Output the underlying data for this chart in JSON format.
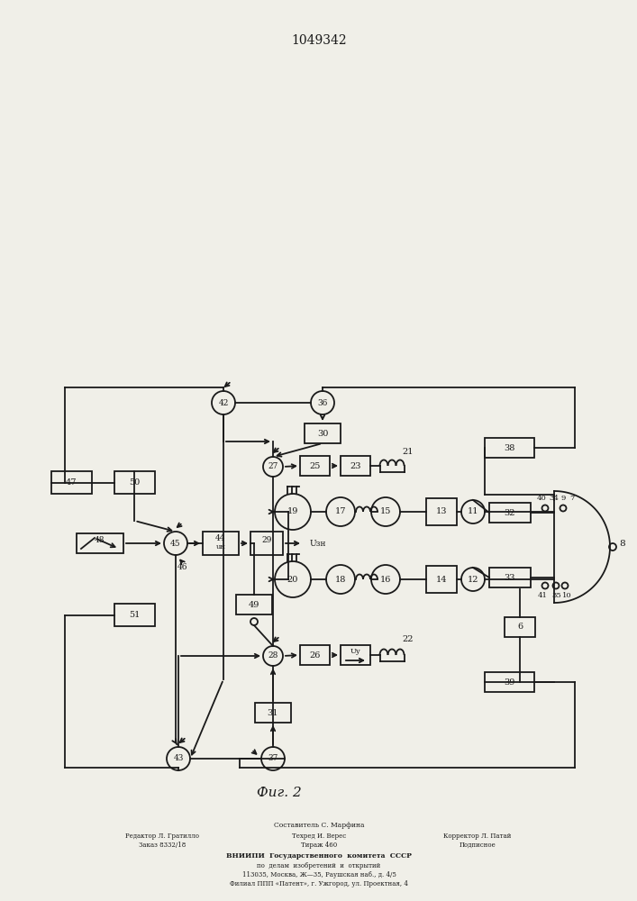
{
  "title": "1049342",
  "fig_label": "Фиг. 2",
  "background_color": "#f0efe8",
  "line_color": "#1a1a1a",
  "footer_line0": "Составитель С. Марфина",
  "footer_line1": "Редактор Л. Гратилло",
  "footer_line1b": "Техред И. Верес",
  "footer_line1c": "Корректор Л. Патай",
  "footer_line2": "Заказ 8332/18",
  "footer_line2b": "Тираж 460",
  "footer_line2c": "Подписное",
  "footer_line3": "ВНИИПИ  Государственного  комитета  СССР",
  "footer_line4": "по  делам  изобретений  и  открытий",
  "footer_line5": "113035, Москва, Ж—35, Раушская наб., д. 4/5",
  "footer_line6": "Филиал ППП «Патент», г. Ужгород, ул. Проектная, 4",
  "label_uzn": "Uзн",
  "label_un": "uн"
}
